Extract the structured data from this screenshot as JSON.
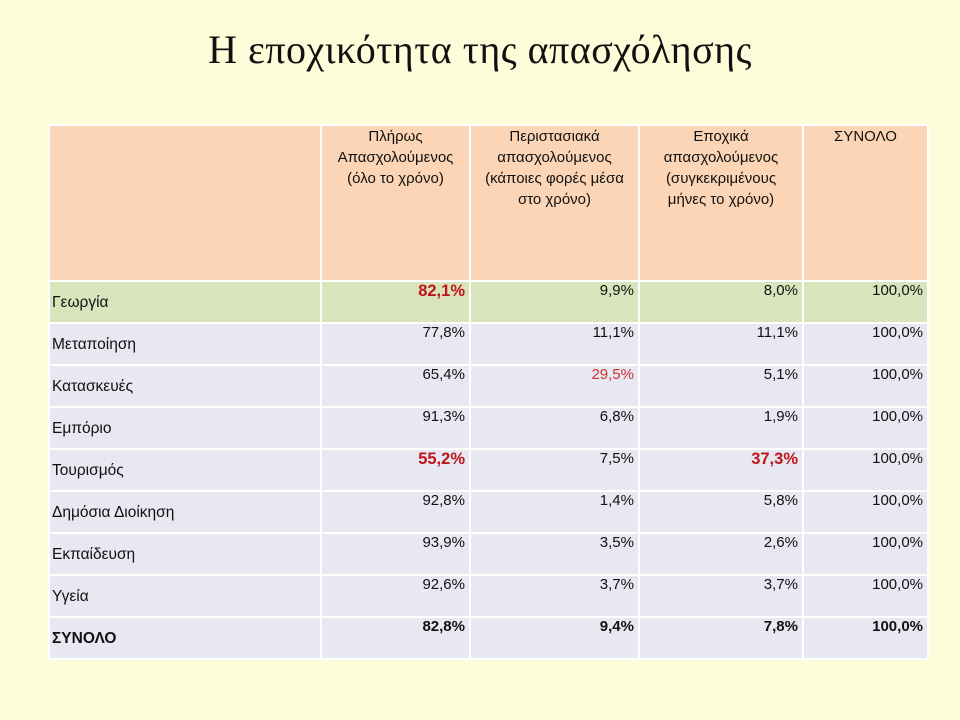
{
  "title": "Η εποχικότητα της απασχόλησης",
  "columns": [
    {
      "lines": [
        "Πλήρως",
        "Απασχολούμενος",
        "(όλο το χρόνο)"
      ]
    },
    {
      "lines": [
        "Περιστασιακά",
        "απασχολούμενος",
        "(κάποιες φορές μέσα",
        "στο χρόνο)"
      ]
    },
    {
      "lines": [
        "Εποχικά",
        "απασχολούμενος",
        "(συγκεκριμένους",
        "μήνες το χρόνο)"
      ]
    },
    {
      "lines": [
        "ΣΥΝΟΛΟ"
      ]
    }
  ],
  "rows": [
    {
      "label": "Γεωργία",
      "values": [
        "82,1%",
        "9,9%",
        "8,0%",
        "100,0%"
      ],
      "highlight": true,
      "emphasis": [
        "strong",
        null,
        null,
        null
      ]
    },
    {
      "label": "Μεταποίηση",
      "values": [
        "77,8%",
        "11,1%",
        "11,1%",
        "100,0%"
      ],
      "emphasis": [
        null,
        null,
        null,
        null
      ]
    },
    {
      "label": "Κατασκευές",
      "values": [
        "65,4%",
        "29,5%",
        "5,1%",
        "100,0%"
      ],
      "emphasis": [
        null,
        "red",
        null,
        null
      ]
    },
    {
      "label": "Εμπόριο",
      "values": [
        "91,3%",
        "6,8%",
        "1,9%",
        "100,0%"
      ],
      "emphasis": [
        null,
        null,
        null,
        null
      ]
    },
    {
      "label": "Τουρισμός",
      "values": [
        "55,2%",
        "7,5%",
        "37,3%",
        "100,0%"
      ],
      "emphasis": [
        "strong",
        null,
        "strong",
        null
      ]
    },
    {
      "label": "Δημόσια Διοίκηση",
      "values": [
        "92,8%",
        "1,4%",
        "5,8%",
        "100,0%"
      ],
      "emphasis": [
        null,
        null,
        null,
        null
      ]
    },
    {
      "label": "Εκπαίδευση",
      "values": [
        "93,9%",
        "3,5%",
        "2,6%",
        "100,0%"
      ],
      "emphasis": [
        null,
        null,
        null,
        null
      ]
    },
    {
      "label": "Υγεία",
      "values": [
        "92,6%",
        "3,7%",
        "3,7%",
        "100,0%"
      ],
      "emphasis": [
        null,
        null,
        null,
        null
      ]
    },
    {
      "label": "ΣΥΝΟΛΟ",
      "values": [
        "82,8%",
        "9,4%",
        "7,8%",
        "100,0%"
      ],
      "total": true,
      "emphasis": [
        null,
        null,
        null,
        null
      ]
    }
  ],
  "colors": {
    "background": "#fdfdd9",
    "header_fill": "#fbd5b5",
    "row_fill": "#e7e8f1",
    "highlight_fill": "#d8e4bc",
    "emphasis_red": "#c0141a"
  }
}
